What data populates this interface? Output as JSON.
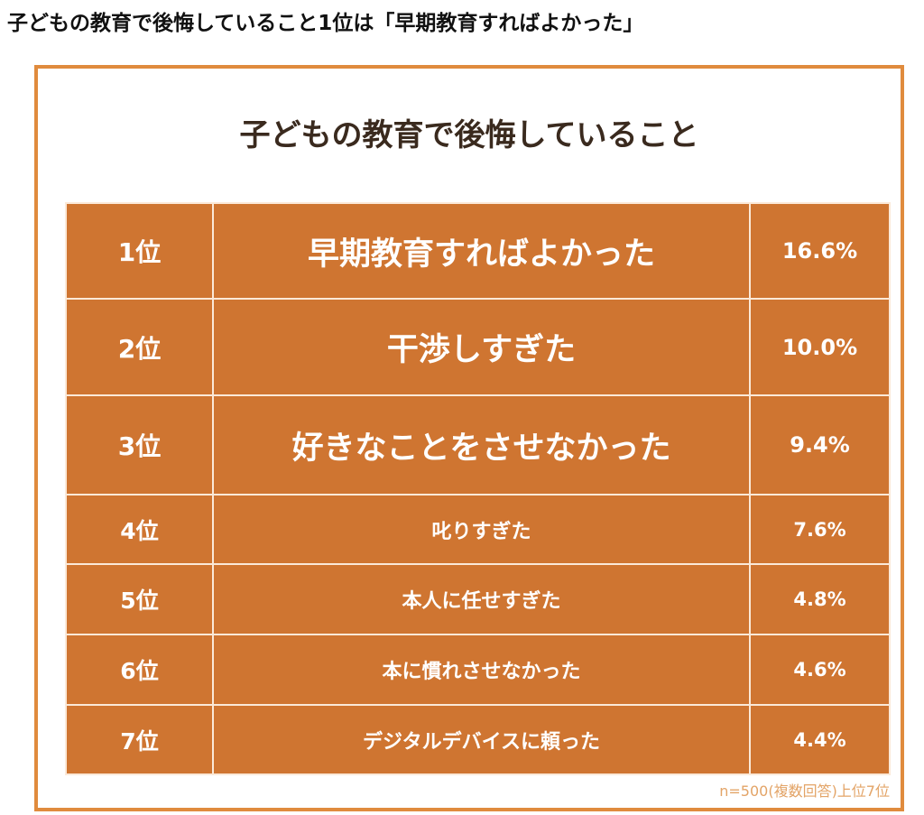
{
  "header": {
    "title": "子どもの教育で後悔していること1位は「早期教育すればよかった」"
  },
  "infographic": {
    "title": "子どもの教育で後悔していること",
    "table": {
      "rows": [
        [
          "1位",
          "早期教育すればよかった",
          "16.6%"
        ],
        [
          "2位",
          "干渉しすぎた",
          "10.0%"
        ],
        [
          "3位",
          "好きなことをさせなかった",
          "9.4%"
        ],
        [
          "4位",
          "叱りすぎた",
          "7.6%"
        ],
        [
          "5位",
          "本人に任せすぎた",
          "4.8%"
        ],
        [
          "6位",
          "本に慣れさせなかった",
          "4.6%"
        ],
        [
          "7位",
          "デジタルデバイスに頼った",
          "4.4%"
        ]
      ]
    },
    "note": "n=500(複数回答)上位7位"
  }
}
